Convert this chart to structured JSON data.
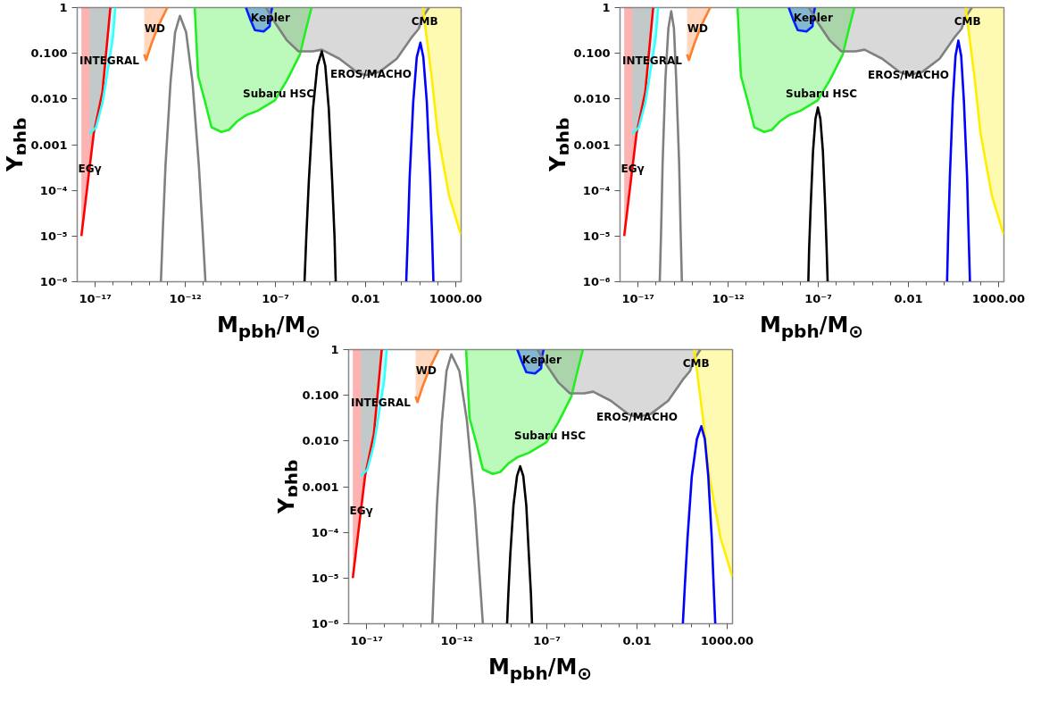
{
  "chart_data": [
    {
      "type": "line",
      "xlabel": "M$_{pbh}$/M$_{⊙}$",
      "ylabel": "Y$_{phb}$",
      "log": "xy",
      "xlim": [
        1e-18,
        2000
      ],
      "ylim": [
        1e-06,
        1
      ],
      "xticks": [
        {
          "value": 1e-17,
          "label": "10⁻¹⁷"
        },
        {
          "value": 1e-16,
          "label": null
        },
        {
          "value": 1e-15,
          "label": null
        },
        {
          "value": 1e-14,
          "label": null
        },
        {
          "value": 1e-13,
          "label": null
        },
        {
          "value": 1e-12,
          "label": "10⁻¹²"
        },
        {
          "value": 1e-11,
          "label": null
        },
        {
          "value": 1e-10,
          "label": null
        },
        {
          "value": 1e-09,
          "label": null
        },
        {
          "value": 1e-08,
          "label": null
        },
        {
          "value": 1e-07,
          "label": "10⁻⁷"
        },
        {
          "value": 1e-06,
          "label": null
        },
        {
          "value": 1e-05,
          "label": null
        },
        {
          "value": 0.0001,
          "label": null
        },
        {
          "value": 0.001,
          "label": null
        },
        {
          "value": 0.01,
          "label": "0.01"
        },
        {
          "value": 0.1,
          "label": null
        },
        {
          "value": 1,
          "label": null
        },
        {
          "value": 10,
          "label": null
        },
        {
          "value": 100,
          "label": null
        },
        {
          "value": 1000,
          "label": "1000.00"
        }
      ],
      "yticks": [
        {
          "value": 1e-06,
          "label": "10⁻⁶"
        },
        {
          "value": 1e-05,
          "label": "10⁻⁵"
        },
        {
          "value": 0.0001,
          "label": "10⁻⁴"
        },
        0.001,
        {
          "value": 0.01,
          "label": "0.010"
        },
        {
          "value": 0.1,
          "label": "0.100"
        },
        1
      ],
      "series": [
        {
          "color": "#ff0000",
          "x": [
            1.7e-18,
            8.3e-18,
            2.5e-17,
            6.9e-17
          ],
          "values": [
            1e-05,
            0.0018,
            0.014,
            1
          ],
          "lower": [
            1e-05,
            0.0018,
            0.014,
            1
          ],
          "upper": [
            1,
            1,
            1,
            1
          ]
        },
        {
          "color": "#33ffff",
          "x": [
            4.8e-18,
            1.1e-17,
            2.5e-17,
            4.4e-17,
            9.5e-17,
            1.3e-16
          ],
          "values": [
            0.0017,
            0.0024,
            0.0081,
            0.032,
            0.22,
            1
          ],
          "lower": [
            0.0017,
            0.0024,
            0.0081,
            0.032,
            0.22,
            1
          ],
          "upper": [
            1,
            1,
            1,
            1,
            1,
            1
          ]
        },
        {
          "color": "#ff7f2a",
          "x": [
            5.2e-15,
            6.6e-15,
            1.3e-14,
            3.2e-14,
            1e-13
          ],
          "values": [
            0.095,
            0.071,
            0.16,
            0.4,
            1
          ],
          "lower": [
            0.095,
            0.071,
            0.16,
            0.4,
            1
          ],
          "upper": [
            1,
            1,
            1,
            1,
            1
          ]
        },
        {
          "color": "#22ee22",
          "x": [
            3.3e-12,
            5.1e-12,
            1.3e-11,
            2.8e-11,
            1e-10,
            2.6e-10,
            7.9e-10,
            2.3e-09,
            1e-08,
            9.3e-08,
            4.4e-07,
            2.3e-06,
            4.6e-06,
            1e-05
          ],
          "values": [
            1,
            0.032,
            0.0081,
            0.0024,
            0.0019,
            0.0021,
            0.0033,
            0.0044,
            0.0055,
            0.0093,
            0.026,
            0.095,
            0.3,
            1
          ],
          "lower": [
            1,
            0.032,
            0.0081,
            0.0024,
            0.0019,
            0.0021,
            0.0033,
            0.0044,
            0.0055,
            0.0093,
            0.026,
            0.095,
            0.3,
            1
          ],
          "upper": [
            1,
            1,
            1,
            1,
            1,
            1,
            1,
            1,
            1,
            1,
            1,
            1,
            1,
            1
          ]
        },
        {
          "color": "#0022ff",
          "x": [
            2.3e-09,
            4.1e-09,
            7.2e-09,
            2.2e-08,
            4.8e-08,
            5.4e-08,
            6.6e-08
          ],
          "values": [
            1,
            0.54,
            0.32,
            0.3,
            0.39,
            0.72,
            1
          ],
          "lower": [
            1,
            0.54,
            0.32,
            0.3,
            0.39,
            0.72,
            1
          ],
          "upper": [
            1,
            1,
            1,
            1,
            1,
            1,
            1
          ]
        },
        {
          "color": "#808080",
          "x": [
            3e-08,
            9.3e-08,
            4.4e-07,
            1.9e-06,
            1.2e-05,
            3.7e-05,
            0.00035,
            0.0032,
            0.01,
            0.058,
            0.54,
            3.5,
            8.7,
            15,
            33
          ],
          "values": [
            1,
            0.47,
            0.19,
            0.11,
            0.11,
            0.12,
            0.076,
            0.039,
            0.033,
            0.039,
            0.076,
            0.22,
            0.34,
            0.62,
            1
          ],
          "lower": [
            1,
            0.47,
            0.19,
            0.11,
            0.11,
            0.12,
            0.076,
            0.039,
            0.033,
            0.039,
            0.076,
            0.22,
            0.34,
            0.62,
            1
          ],
          "upper": [
            1,
            1,
            1,
            1,
            1,
            1,
            1,
            1,
            1,
            1,
            1,
            1,
            1,
            1,
            1
          ]
        },
        {
          "color": "#ffee00",
          "x": [
            15,
            46,
            100,
            430,
            1900
          ],
          "values": [
            1,
            0.031,
            0.0018,
            7.6e-05,
            1.1e-05
          ],
          "lower": [
            1,
            0.031,
            0.0018,
            7.6e-05,
            1.1e-05
          ],
          "upper": [
            1,
            1,
            1,
            1,
            1
          ]
        },
        {
          "color": "#808080",
          "x": [
            4.4e-14,
            5.6e-14,
            7.9e-14,
            1.5e-13,
            2.7e-13,
            5e-13,
            1.1e-12,
            2.5e-12,
            5.6e-12,
            9.1e-12,
            1.3e-11
          ],
          "values": [
            1e-06,
            1.3e-05,
            0.00035,
            0.023,
            0.29,
            0.66,
            0.29,
            0.023,
            0.00035,
            1.3e-05,
            1e-06
          ]
        },
        {
          "color": "#000000",
          "x": [
            4.1e-06,
            5.1e-06,
            7.1e-06,
            1.2e-05,
            2.1e-05,
            3.7e-05,
            5.8e-05,
            9.1e-05,
            0.00014,
            0.00019,
            0.00022
          ],
          "values": [
            1e-06,
            9.1e-06,
            0.00016,
            0.006,
            0.053,
            0.11,
            0.053,
            0.006,
            0.00016,
            9.1e-06,
            1e-06
          ]
        },
        {
          "color": "#0000ff",
          "x": [
            1.8,
            2.2,
            2.8,
            4.4,
            6.9,
            11,
            16,
            25,
            38,
            49,
            58
          ],
          "values": [
            1e-06,
            1e-05,
            0.0002,
            0.0085,
            0.082,
            0.17,
            0.082,
            0.0085,
            0.0002,
            1e-05,
            1e-06
          ]
        }
      ],
      "annotations": [
        {
          "text": "INTEGRAL",
          "x": 6e-17,
          "y": 0.07
        },
        {
          "text": "EGγ",
          "x": 5e-18,
          "y": 0.0003
        },
        {
          "text": "WD",
          "x": 2e-14,
          "y": 0.35
        },
        {
          "text": "Kepler",
          "x": 5.2e-08,
          "y": 0.6
        },
        {
          "text": "Subaru HSC",
          "x": 1.5e-07,
          "y": 0.013
        },
        {
          "text": "EROS/MACHO",
          "x": 0.02,
          "y": 0.035
        },
        {
          "text": "CMB",
          "x": 19,
          "y": 0.5
        }
      ]
    },
    {
      "type": "line",
      "xlabel": "M$_{pbh}$/M$_{⊙}$",
      "ylabel": "Y$_{phb}$",
      "log": "xy",
      "xlim": [
        1e-18,
        2000
      ],
      "ylim": [
        1e-06,
        1
      ],
      "xticks": [
        {
          "value": 1e-17,
          "label": "10⁻¹⁷"
        },
        {
          "value": 1e-16,
          "label": null
        },
        {
          "value": 1e-15,
          "label": null
        },
        {
          "value": 1e-14,
          "label": null
        },
        {
          "value": 1e-13,
          "label": null
        },
        {
          "value": 1e-12,
          "label": "10⁻¹²"
        },
        {
          "value": 1e-11,
          "label": null
        },
        {
          "value": 1e-10,
          "label": null
        },
        {
          "value": 1e-09,
          "label": null
        },
        {
          "value": 1e-08,
          "label": null
        },
        {
          "value": 1e-07,
          "label": "10⁻⁷"
        },
        {
          "value": 1e-06,
          "label": null
        },
        {
          "value": 1e-05,
          "label": null
        },
        {
          "value": 0.0001,
          "label": null
        },
        {
          "value": 0.001,
          "label": null
        },
        {
          "value": 0.01,
          "label": "0.01"
        },
        {
          "value": 0.1,
          "label": null
        },
        {
          "value": 1,
          "label": null
        },
        {
          "value": 10,
          "label": null
        },
        {
          "value": 100,
          "label": null
        },
        {
          "value": 1000,
          "label": "1000.00"
        }
      ],
      "yticks": [
        {
          "value": 1e-06,
          "label": "10⁻⁶"
        },
        {
          "value": 1e-05,
          "label": "10⁻⁵"
        },
        {
          "value": 0.0001,
          "label": "10⁻⁴"
        },
        0.001,
        {
          "value": 0.01,
          "label": "0.010"
        },
        {
          "value": 0.1,
          "label": "0.100"
        },
        1
      ],
      "series": [
        {
          "color": "#ff0000",
          "x": [
            1.7e-18,
            8.3e-18,
            2.5e-17,
            6.9e-17
          ],
          "values": [
            1e-05,
            0.0018,
            0.014,
            1
          ],
          "lower": [
            1e-05,
            0.0018,
            0.014,
            1
          ],
          "upper": [
            1,
            1,
            1,
            1
          ]
        },
        {
          "color": "#33ffff",
          "x": [
            4.8e-18,
            1.1e-17,
            2.5e-17,
            4.4e-17,
            9.5e-17,
            1.3e-16
          ],
          "values": [
            0.0017,
            0.0024,
            0.0081,
            0.032,
            0.22,
            1
          ],
          "lower": [
            0.0017,
            0.0024,
            0.0081,
            0.032,
            0.22,
            1
          ],
          "upper": [
            1,
            1,
            1,
            1,
            1,
            1
          ]
        },
        {
          "color": "#ff7f2a",
          "x": [
            5.2e-15,
            6.6e-15,
            1.3e-14,
            3.2e-14,
            1e-13
          ],
          "values": [
            0.095,
            0.071,
            0.16,
            0.4,
            1
          ],
          "lower": [
            0.095,
            0.071,
            0.16,
            0.4,
            1
          ],
          "upper": [
            1,
            1,
            1,
            1,
            1
          ]
        },
        {
          "color": "#22ee22",
          "x": [
            3.3e-12,
            5.1e-12,
            1.3e-11,
            2.8e-11,
            1e-10,
            2.6e-10,
            7.9e-10,
            2.3e-09,
            1e-08,
            9.3e-08,
            4.4e-07,
            2.3e-06,
            4.6e-06,
            1e-05
          ],
          "values": [
            1,
            0.032,
            0.0081,
            0.0024,
            0.0019,
            0.0021,
            0.0033,
            0.0044,
            0.0055,
            0.0093,
            0.026,
            0.095,
            0.3,
            1
          ],
          "lower": [
            1,
            0.032,
            0.0081,
            0.0024,
            0.0019,
            0.0021,
            0.0033,
            0.0044,
            0.0055,
            0.0093,
            0.026,
            0.095,
            0.3,
            1
          ],
          "upper": [
            1,
            1,
            1,
            1,
            1,
            1,
            1,
            1,
            1,
            1,
            1,
            1,
            1,
            1
          ]
        },
        {
          "color": "#0022ff",
          "x": [
            2.3e-09,
            4.1e-09,
            7.2e-09,
            2.2e-08,
            4.8e-08,
            5.4e-08,
            6.6e-08
          ],
          "values": [
            1,
            0.54,
            0.32,
            0.3,
            0.39,
            0.72,
            1
          ],
          "lower": [
            1,
            0.54,
            0.32,
            0.3,
            0.39,
            0.72,
            1
          ],
          "upper": [
            1,
            1,
            1,
            1,
            1,
            1,
            1
          ]
        },
        {
          "color": "#808080",
          "x": [
            3e-08,
            9.3e-08,
            4.4e-07,
            1.9e-06,
            1.2e-05,
            3.7e-05,
            0.00035,
            0.0032,
            0.01,
            0.058,
            0.54,
            3.5,
            8.7,
            15,
            33
          ],
          "values": [
            1,
            0.47,
            0.19,
            0.11,
            0.11,
            0.12,
            0.076,
            0.039,
            0.033,
            0.039,
            0.076,
            0.22,
            0.34,
            0.62,
            1
          ],
          "lower": [
            1,
            0.47,
            0.19,
            0.11,
            0.11,
            0.12,
            0.076,
            0.039,
            0.033,
            0.039,
            0.076,
            0.22,
            0.34,
            0.62,
            1
          ],
          "upper": [
            1,
            1,
            1,
            1,
            1,
            1,
            1,
            1,
            1,
            1,
            1,
            1,
            1,
            1,
            1
          ]
        },
        {
          "color": "#ffee00",
          "x": [
            15,
            46,
            100,
            430,
            1900
          ],
          "values": [
            1,
            0.031,
            0.0018,
            7.6e-05,
            1.1e-05
          ],
          "lower": [
            1,
            0.031,
            0.0018,
            7.6e-05,
            1.1e-05
          ],
          "upper": [
            1,
            1,
            1,
            1,
            1
          ]
        },
        {
          "color": "#808080",
          "x": [
            1.6e-16,
            1.9e-16,
            2.3e-16,
            3.3e-16,
            4.8e-16,
            6.9e-16,
            9.8e-16,
            1.3e-15,
            1.9e-15,
            2.3e-15,
            2.7e-15
          ],
          "values": [
            1e-06,
            1.3e-05,
            0.00039,
            0.028,
            0.35,
            0.83,
            0.35,
            0.028,
            0.00039,
            1.3e-05,
            1e-06
          ]
        },
        {
          "color": "#000000",
          "x": [
            2.8e-08,
            3.1e-08,
            3.8e-08,
            5.1e-08,
            7e-08,
            9.5e-08,
            1.3e-07,
            1.8e-07,
            2.4e-07,
            2.9e-07,
            3.3e-07
          ],
          "values": [
            1e-06,
            5.3e-06,
            4.7e-05,
            0.00072,
            0.0037,
            0.0065,
            0.0037,
            0.00072,
            4.7e-05,
            5.3e-06,
            1e-06
          ]
        },
        {
          "color": "#0000ff",
          "x": [
            1.4,
            1.6,
            2,
            2.9,
            4.1,
            5.9,
            8.5,
            12,
            18,
            22,
            26
          ],
          "values": [
            1e-06,
            1e-05,
            0.0002,
            0.009,
            0.087,
            0.19,
            0.087,
            0.009,
            0.0002,
            1e-05,
            1e-06
          ]
        }
      ],
      "annotations": [
        {
          "text": "INTEGRAL",
          "x": 6e-17,
          "y": 0.07
        },
        {
          "text": "EGγ",
          "x": 5e-18,
          "y": 0.0003
        },
        {
          "text": "WD",
          "x": 2e-14,
          "y": 0.35
        },
        {
          "text": "Kepler",
          "x": 5.2e-08,
          "y": 0.6
        },
        {
          "text": "Subaru HSC",
          "x": 1.5e-07,
          "y": 0.013
        },
        {
          "text": "EROS/MACHO",
          "x": 0.01,
          "y": 0.033
        },
        {
          "text": "CMB",
          "x": 19,
          "y": 0.5
        }
      ]
    },
    {
      "type": "line",
      "xlabel": "M$_{pbh}$/M$_{⊙}$",
      "ylabel": "Y$_{phb}$",
      "log": "xy",
      "xlim": [
        1e-18,
        2000
      ],
      "ylim": [
        1e-06,
        1
      ],
      "xticks": [
        {
          "value": 1e-17,
          "label": "10⁻¹⁷"
        },
        {
          "value": 1e-16,
          "label": null
        },
        {
          "value": 1e-15,
          "label": null
        },
        {
          "value": 1e-14,
          "label": null
        },
        {
          "value": 1e-13,
          "label": null
        },
        {
          "value": 1e-12,
          "label": "10⁻¹²"
        },
        {
          "value": 1e-11,
          "label": null
        },
        {
          "value": 1e-10,
          "label": null
        },
        {
          "value": 1e-09,
          "label": null
        },
        {
          "value": 1e-08,
          "label": null
        },
        {
          "value": 1e-07,
          "label": "10⁻⁷"
        },
        {
          "value": 1e-06,
          "label": null
        },
        {
          "value": 1e-05,
          "label": null
        },
        {
          "value": 0.0001,
          "label": null
        },
        {
          "value": 0.001,
          "label": null
        },
        {
          "value": 0.01,
          "label": "0.01"
        },
        {
          "value": 0.1,
          "label": null
        },
        {
          "value": 1,
          "label": null
        },
        {
          "value": 10,
          "label": null
        },
        {
          "value": 100,
          "label": null
        },
        {
          "value": 1000,
          "label": "1000.00"
        }
      ],
      "yticks": [
        {
          "value": 1e-06,
          "label": "10⁻⁶"
        },
        {
          "value": 1e-05,
          "label": "10⁻⁵"
        },
        {
          "value": 0.0001,
          "label": "10⁻⁴"
        },
        0.001,
        {
          "value": 0.01,
          "label": "0.010"
        },
        {
          "value": 0.1,
          "label": "0.100"
        },
        1
      ],
      "series": [
        {
          "color": "#ff0000",
          "x": [
            1.7e-18,
            8.3e-18,
            2.5e-17,
            6.9e-17
          ],
          "values": [
            1e-05,
            0.0018,
            0.014,
            1
          ],
          "lower": [
            1e-05,
            0.0018,
            0.014,
            1
          ],
          "upper": [
            1,
            1,
            1,
            1
          ]
        },
        {
          "color": "#33ffff",
          "x": [
            4.8e-18,
            1.1e-17,
            2.5e-17,
            4.4e-17,
            9.5e-17,
            1.3e-16
          ],
          "values": [
            0.0017,
            0.0024,
            0.0081,
            0.032,
            0.22,
            1
          ],
          "lower": [
            0.0017,
            0.0024,
            0.0081,
            0.032,
            0.22,
            1
          ],
          "upper": [
            1,
            1,
            1,
            1,
            1,
            1
          ]
        },
        {
          "color": "#ff7f2a",
          "x": [
            5.2e-15,
            6.6e-15,
            1.3e-14,
            3.2e-14,
            1e-13
          ],
          "values": [
            0.095,
            0.071,
            0.16,
            0.4,
            1
          ],
          "lower": [
            0.095,
            0.071,
            0.16,
            0.4,
            1
          ],
          "upper": [
            1,
            1,
            1,
            1,
            1
          ]
        },
        {
          "color": "#22ee22",
          "x": [
            3.3e-12,
            5.1e-12,
            1.3e-11,
            2.8e-11,
            1e-10,
            2.6e-10,
            7.9e-10,
            2.3e-09,
            1e-08,
            9.3e-08,
            4.4e-07,
            2.3e-06,
            4.6e-06,
            1e-05
          ],
          "values": [
            1,
            0.032,
            0.0081,
            0.0024,
            0.0019,
            0.0021,
            0.0033,
            0.0044,
            0.0055,
            0.0093,
            0.026,
            0.095,
            0.3,
            1
          ],
          "lower": [
            1,
            0.032,
            0.0081,
            0.0024,
            0.0019,
            0.0021,
            0.0033,
            0.0044,
            0.0055,
            0.0093,
            0.026,
            0.095,
            0.3,
            1
          ],
          "upper": [
            1,
            1,
            1,
            1,
            1,
            1,
            1,
            1,
            1,
            1,
            1,
            1,
            1,
            1
          ]
        },
        {
          "color": "#0022ff",
          "x": [
            2.3e-09,
            4.1e-09,
            7.2e-09,
            2.2e-08,
            4.8e-08,
            5.4e-08,
            6.6e-08
          ],
          "values": [
            1,
            0.54,
            0.32,
            0.3,
            0.39,
            0.72,
            1
          ],
          "lower": [
            1,
            0.54,
            0.32,
            0.3,
            0.39,
            0.72,
            1
          ],
          "upper": [
            1,
            1,
            1,
            1,
            1,
            1,
            1
          ]
        },
        {
          "color": "#808080",
          "x": [
            3e-08,
            9.3e-08,
            4.4e-07,
            1.9e-06,
            1.2e-05,
            3.7e-05,
            0.00035,
            0.0032,
            0.01,
            0.058,
            0.54,
            3.5,
            8.7,
            15,
            33
          ],
          "values": [
            1,
            0.47,
            0.19,
            0.11,
            0.11,
            0.12,
            0.076,
            0.039,
            0.033,
            0.039,
            0.076,
            0.22,
            0.34,
            0.62,
            1
          ],
          "lower": [
            1,
            0.47,
            0.19,
            0.11,
            0.11,
            0.12,
            0.076,
            0.039,
            0.033,
            0.039,
            0.076,
            0.22,
            0.34,
            0.62,
            1
          ],
          "upper": [
            1,
            1,
            1,
            1,
            1,
            1,
            1,
            1,
            1,
            1,
            1,
            1,
            1,
            1,
            1
          ]
        },
        {
          "color": "#ffee00",
          "x": [
            15,
            46,
            100,
            430,
            1900
          ],
          "values": [
            1,
            0.031,
            0.0018,
            7.6e-05,
            1.1e-05
          ],
          "lower": [
            1,
            0.031,
            0.0018,
            7.6e-05,
            1.1e-05
          ],
          "upper": [
            1,
            1,
            1,
            1,
            1
          ]
        },
        {
          "color": "#808080",
          "x": [
            4.4e-14,
            5.6e-14,
            7.9e-14,
            1.5e-13,
            2.7e-13,
            5e-13,
            1.4e-12,
            3.7e-12,
            1e-11,
            1.8e-11,
            2.8e-11
          ],
          "values": [
            1e-06,
            1.3e-05,
            0.00038,
            0.027,
            0.34,
            0.79,
            0.34,
            0.027,
            0.00038,
            1.3e-05,
            1e-06
          ]
        },
        {
          "color": "#000000",
          "x": [
            6.2e-10,
            7.3e-10,
            9.3e-10,
            1.4e-09,
            2.2e-09,
            3.3e-09,
            4.9e-09,
            7.2e-09,
            1e-08,
            1.3e-08,
            1.5e-08
          ],
          "values": [
            1e-06,
            4.6e-06,
            3.2e-05,
            0.00039,
            0.0017,
            0.0028,
            0.0017,
            0.00039,
            3.2e-05,
            4.6e-06,
            1e-06
          ]
        },
        {
          "color": "#0000ff",
          "x": [
            3.5,
            4.5,
            6.4,
            11,
            21,
            37,
            58,
            90,
            140,
            180,
            220
          ],
          "values": [
            1e-06,
            6.6e-06,
            7.8e-05,
            0.0017,
            0.011,
            0.021,
            0.011,
            0.0017,
            7.8e-05,
            6.6e-06,
            1e-06
          ]
        }
      ],
      "annotations": [
        {
          "text": "INTEGRAL",
          "x": 6e-17,
          "y": 0.07
        },
        {
          "text": "EGγ",
          "x": 5e-18,
          "y": 0.0003
        },
        {
          "text": "WD",
          "x": 2e-14,
          "y": 0.35
        },
        {
          "text": "Kepler",
          "x": 5.2e-08,
          "y": 0.6
        },
        {
          "text": "Subaru HSC",
          "x": 1.5e-07,
          "y": 0.013
        },
        {
          "text": "EROS/MACHO",
          "x": 0.01,
          "y": 0.033
        },
        {
          "text": "CMB",
          "x": 19,
          "y": 0.5
        }
      ]
    }
  ]
}
